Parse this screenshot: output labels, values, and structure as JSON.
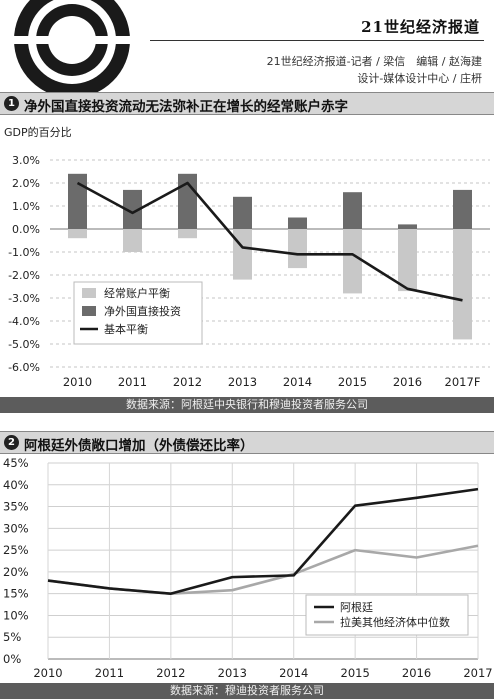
{
  "header": {
    "brand": "21世纪经济报道",
    "credit_line1": "21世纪经济报道-记者 / 梁信　编辑 / 赵海建",
    "credit_line2": "设计-媒体设计中心 / 庄枅"
  },
  "section1": {
    "number": "1",
    "title": "净外国直接投资流动无法弥补正在增长的经常账户赤字",
    "source": "数据来源：阿根廷中央银行和穆迪投资者服务公司"
  },
  "section2": {
    "number": "2",
    "title": "阿根廷外债敞口增加（外债偿还比率）",
    "source": "数据来源：穆迪投资者服务公司"
  },
  "colors": {
    "current_account": "#c8c8c8",
    "fdi": "#6b6b6b",
    "basic_balance": "#1a1a1a",
    "argentina": "#1a1a1a",
    "latam_median": "#a8a8a8"
  },
  "chart_data": [
    {
      "type": "bar",
      "ylabel": "GDP的百分比",
      "categories": [
        "2010",
        "2011",
        "2012",
        "2013",
        "2014",
        "2015",
        "2016",
        "2017F"
      ],
      "ylim": [
        -6,
        3
      ],
      "yticks": [
        "3.0%",
        "2.0%",
        "1.0%",
        "0.0%",
        "-1.0%",
        "-2.0%",
        "-3.0%",
        "-4.0%",
        "-5.0%",
        "-6.0%"
      ],
      "series": [
        {
          "name": "经常账户平衡",
          "kind": "bar",
          "values": [
            -0.4,
            -1.0,
            -0.4,
            -2.2,
            -1.7,
            -2.8,
            -2.7,
            -4.8
          ]
        },
        {
          "name": "净外国直接投资",
          "kind": "bar",
          "values": [
            2.4,
            1.7,
            2.4,
            1.4,
            0.5,
            1.6,
            0.2,
            1.7
          ]
        },
        {
          "name": "基本平衡",
          "kind": "line",
          "values": [
            2.0,
            0.7,
            2.0,
            -0.8,
            -1.1,
            -1.1,
            -2.6,
            -3.1
          ]
        }
      ],
      "legend": "bottom-left"
    },
    {
      "type": "line",
      "categories": [
        "2010",
        "2011",
        "2012",
        "2013",
        "2014",
        "2015",
        "2016",
        "2017"
      ],
      "ylim": [
        0,
        45
      ],
      "yticks": [
        "45%",
        "40%",
        "35%",
        "30%",
        "25%",
        "20%",
        "15%",
        "10%",
        "5%",
        "0%"
      ],
      "series": [
        {
          "name": "阿根廷",
          "values": [
            18,
            16.2,
            15.0,
            18.8,
            19.2,
            35.2,
            37.0,
            39.0
          ]
        },
        {
          "name": "拉美其他经济体中位数",
          "values": [
            18,
            16.2,
            15.0,
            15.8,
            19.5,
            25.0,
            23.3,
            26.0
          ]
        }
      ],
      "legend": "bottom-right"
    }
  ]
}
